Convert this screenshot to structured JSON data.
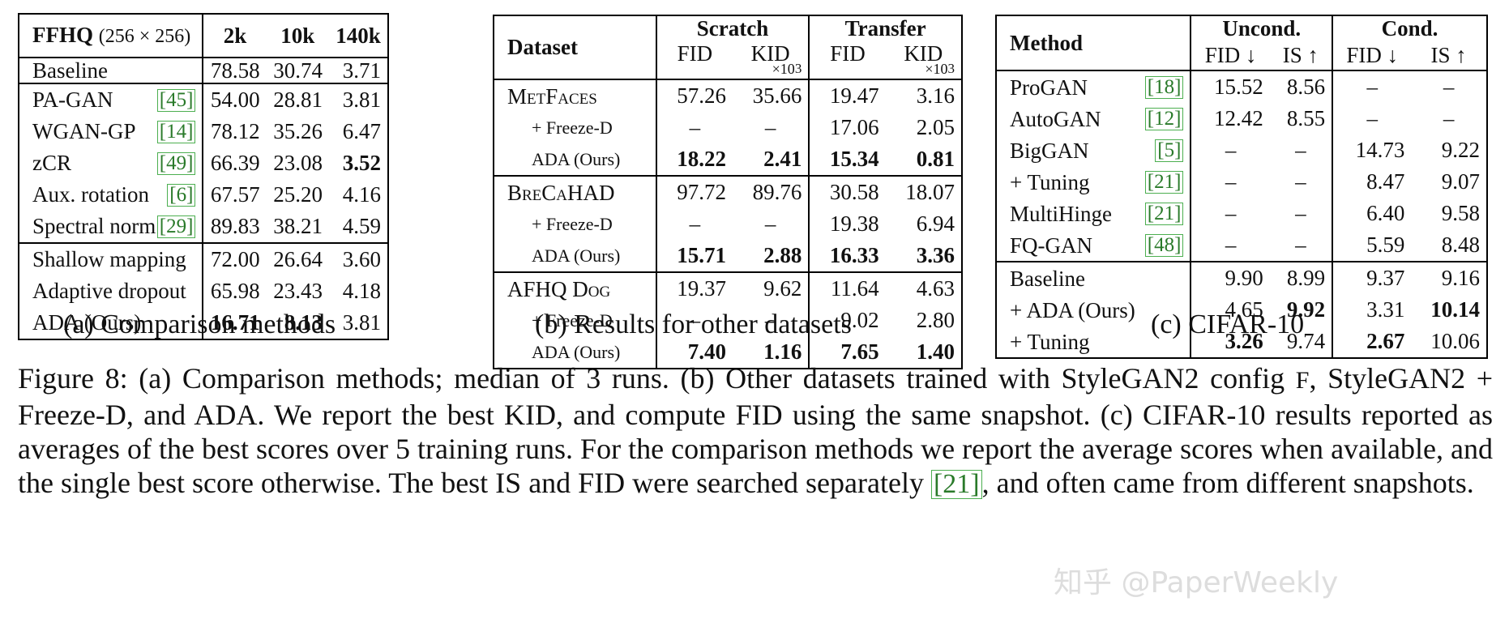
{
  "table_a": {
    "header": {
      "label": "FFHQ",
      "res": "(256 × 256)",
      "cols": [
        "2k",
        "10k",
        "140k"
      ]
    },
    "group1": [
      {
        "method": "Baseline",
        "cite": "",
        "v": [
          "78.58",
          "30.74",
          "3.71"
        ]
      }
    ],
    "group2": [
      {
        "method": "PA-GAN",
        "cite": "[45]",
        "v": [
          "54.00",
          "28.81",
          "3.81"
        ]
      },
      {
        "method": "WGAN-GP",
        "cite": "[14]",
        "v": [
          "78.12",
          "35.26",
          "6.47"
        ]
      },
      {
        "method": "zCR",
        "cite": "[49]",
        "v": [
          "66.39",
          "23.08",
          "3.52"
        ]
      },
      {
        "method": "Aux. rotation",
        "cite": "[6]",
        "v": [
          "67.57",
          "25.20",
          "4.16"
        ]
      },
      {
        "method": "Spectral norm",
        "cite": "[29]",
        "v": [
          "89.83",
          "38.21",
          "4.59"
        ]
      }
    ],
    "group3": [
      {
        "method": "Shallow mapping",
        "cite": "",
        "v": [
          "72.00",
          "26.64",
          "3.60"
        ]
      },
      {
        "method": "Adaptive dropout",
        "cite": "",
        "v": [
          "65.98",
          "23.43",
          "4.18"
        ]
      },
      {
        "method": "ADA (Ours)",
        "cite": "",
        "v": [
          "16.71",
          "8.13",
          "3.81"
        ]
      }
    ],
    "caption": "(a) Comparison methods"
  },
  "table_b": {
    "header": {
      "dataset": "Dataset",
      "scratch": "Scratch",
      "transfer": "Transfer",
      "fid": "FID",
      "kid": "KID",
      "kid_scale": "×10",
      "kid_exp": "3"
    },
    "datasets": [
      {
        "name": "MetFaces",
        "rows": [
          {
            "label": "",
            "v": [
              "57.26",
              "35.66",
              "19.47",
              "3.16"
            ]
          },
          {
            "label": "+ Freeze-D",
            "v": [
              "–",
              "–",
              "17.06",
              "2.05"
            ]
          },
          {
            "label": "ADA (Ours)",
            "v": [
              "18.22",
              "2.41",
              "15.34",
              "0.81"
            ]
          }
        ]
      },
      {
        "name": "BreCaHAD",
        "rows": [
          {
            "label": "",
            "v": [
              "97.72",
              "89.76",
              "30.58",
              "18.07"
            ]
          },
          {
            "label": "+ Freeze-D",
            "v": [
              "–",
              "–",
              "19.38",
              "6.94"
            ]
          },
          {
            "label": "ADA (Ours)",
            "v": [
              "15.71",
              "2.88",
              "16.33",
              "3.36"
            ]
          }
        ]
      },
      {
        "name": "AFHQ Dog",
        "rows": [
          {
            "label": "",
            "v": [
              "19.37",
              "9.62",
              "11.64",
              "4.63"
            ]
          },
          {
            "label": "+ Freeze-D",
            "v": [
              "–",
              "–",
              "9.02",
              "2.80"
            ]
          },
          {
            "label": "ADA (Ours)",
            "v": [
              "7.40",
              "1.16",
              "7.65",
              "1.40"
            ]
          }
        ]
      }
    ],
    "caption": "(b) Results for other datasets"
  },
  "table_c": {
    "header": {
      "method": "Method",
      "uncond": "Uncond.",
      "cond": "Cond.",
      "cols": [
        "FID ↓",
        "IS ↑",
        "FID ↓",
        "IS ↑"
      ]
    },
    "group1": [
      {
        "method": "ProGAN",
        "cite": "[18]",
        "v": [
          "15.52",
          "8.56",
          "–",
          "–"
        ]
      },
      {
        "method": "AutoGAN",
        "cite": "[12]",
        "v": [
          "12.42",
          "8.55",
          "–",
          "–"
        ]
      },
      {
        "method": "BigGAN",
        "cite": "[5]",
        "v": [
          "–",
          "–",
          "14.73",
          "9.22"
        ]
      },
      {
        "method": "+ Tuning",
        "cite": "[21]",
        "v": [
          "–",
          "–",
          "8.47",
          "9.07"
        ]
      },
      {
        "method": "MultiHinge",
        "cite": "[21]",
        "v": [
          "–",
          "–",
          "6.40",
          "9.58"
        ]
      },
      {
        "method": "FQ-GAN",
        "cite": "[48]",
        "v": [
          "–",
          "–",
          "5.59",
          "8.48"
        ]
      }
    ],
    "group2": [
      {
        "method": "Baseline",
        "cite": "",
        "v": [
          "9.90",
          "8.99",
          "9.37",
          "9.16"
        ]
      },
      {
        "method": "+ ADA (Ours)",
        "cite": "",
        "v": [
          "4.65",
          "9.92",
          "3.31",
          "10.14"
        ]
      },
      {
        "method": "+ Tuning",
        "cite": "",
        "v": [
          "3.26",
          "9.74",
          "2.67",
          "10.06"
        ]
      }
    ],
    "caption": "(c) CIFAR-10"
  },
  "figure_caption": {
    "s1": "Figure 8: (a) Comparison methods; median of 3 runs. (b) Other datasets trained with StyleGAN2 config ",
    "f": "F",
    "s2": ", StyleGAN2 + Freeze-D, and ADA. We report the best KID, and compute FID using the same snapshot. (c) CIFAR-10 results reported as averages of the best scores over 5 training runs. For the comparison methods we report the average scores when available, and the single best score otherwise. The best IS and FID were searched separately ",
    "cite": "[21]",
    "s3": ", and often came from different snapshots."
  },
  "watermark": "知乎 @PaperWeekly"
}
